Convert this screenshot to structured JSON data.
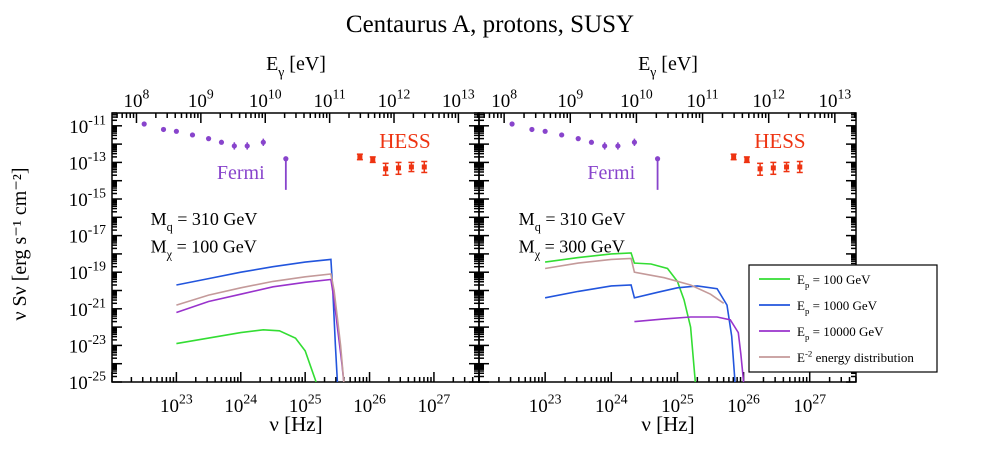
{
  "chart_data": {
    "title": "Centaurus A, protons, SUSY",
    "type": "line",
    "x_scale": "log",
    "y_scale": "log",
    "bottom_axis": {
      "label": "ν [Hz]",
      "lim_log10": [
        22.0,
        27.7
      ],
      "tick_exponents": [
        23,
        24,
        25,
        26,
        27
      ],
      "tick_base": "10"
    },
    "top_axis": {
      "label": "Eγ [eV]",
      "label_main": "E",
      "label_sub": "γ",
      "label_tail": " [eV]",
      "lim_log10": [
        7.62,
        13.32
      ],
      "tick_exponents": [
        8,
        9,
        10,
        11,
        12,
        13
      ],
      "tick_base": "10"
    },
    "y_axis": {
      "label": "ν Sν [erg s⁻¹ cm⁻²]",
      "lim_log10": [
        -25,
        -10.3
      ],
      "tick_exponents": [
        -11,
        -13,
        -15,
        -17,
        -19,
        -21,
        -23,
        -25
      ],
      "tick_base": "10"
    },
    "legend": {
      "placement": "lower-right of right panel",
      "entries": [
        {
          "label": "Ep = 100 GeV",
          "main": "E",
          "sub": "p",
          "tail": " = 100 GeV",
          "color": "#33dd33"
        },
        {
          "label": "Ep = 1000 GeV",
          "main": "E",
          "sub": "p",
          "tail": " = 1000 GeV",
          "color": "#2255dd"
        },
        {
          "label": "Ep = 10000 GeV",
          "main": "E",
          "sub": "p",
          "tail": " = 10000 GeV",
          "color": "#9933cc"
        },
        {
          "label": "E-2 energy distribution",
          "main": "E",
          "sup": "-2",
          "tail": " energy distribution",
          "color": "#c49a9a"
        }
      ]
    },
    "observations": {
      "fermi": {
        "label": "Fermi",
        "color": "#8844cc",
        "points": [
          [
            22.5,
            -10.9
          ],
          [
            22.8,
            -11.2
          ],
          [
            23.0,
            -11.3
          ],
          [
            23.25,
            -11.5
          ],
          [
            23.5,
            -11.7
          ],
          [
            23.7,
            -11.9
          ],
          [
            23.9,
            -12.1
          ],
          [
            24.1,
            -12.1
          ],
          [
            24.35,
            -11.9
          ],
          [
            24.7,
            -12.8
          ]
        ],
        "upper_limit_x": 24.7,
        "upper_limit_y_bottom": -14.5,
        "errors": [
          [
            23.9,
            -12.3,
            -11.9
          ],
          [
            24.1,
            -12.3,
            -11.9
          ],
          [
            24.35,
            -12.1,
            -11.7
          ]
        ]
      },
      "hess": {
        "label": "HESS",
        "color": "#ee3311",
        "points": [
          [
            25.85,
            -12.7
          ],
          [
            26.05,
            -12.85
          ],
          [
            26.25,
            -13.35
          ],
          [
            26.45,
            -13.3
          ],
          [
            26.65,
            -13.25
          ],
          [
            26.85,
            -13.25
          ]
        ],
        "errors": [
          [
            25.85,
            -12.85,
            -12.55
          ],
          [
            26.05,
            -13.0,
            -12.7
          ],
          [
            26.25,
            -13.7,
            -13.05
          ],
          [
            26.45,
            -13.65,
            -13.0
          ],
          [
            26.65,
            -13.5,
            -13.0
          ],
          [
            26.85,
            -13.55,
            -12.95
          ]
        ]
      }
    },
    "panels": [
      {
        "name": "left",
        "annotation_line1": {
          "main": "M",
          "sub": "q",
          "tail": " = 310 GeV"
        },
        "annotation_line2": {
          "main": "M",
          "sub": "χ",
          "tail": " = 100 GeV"
        },
        "series": [
          {
            "name": "Ep = 100 GeV",
            "color": "#33dd33",
            "points": [
              [
                23.0,
                -22.9
              ],
              [
                23.5,
                -22.6
              ],
              [
                24.0,
                -22.3
              ],
              [
                24.35,
                -22.15
              ],
              [
                24.6,
                -22.2
              ],
              [
                24.85,
                -22.6
              ],
              [
                25.0,
                -23.3
              ],
              [
                25.1,
                -24.3
              ],
              [
                25.17,
                -25
              ]
            ]
          },
          {
            "name": "Ep = 1000 GeV",
            "color": "#2255dd",
            "points": [
              [
                23.0,
                -19.7
              ],
              [
                23.5,
                -19.35
              ],
              [
                24.0,
                -19.0
              ],
              [
                24.5,
                -18.7
              ],
              [
                25.0,
                -18.45
              ],
              [
                25.4,
                -18.3
              ],
              [
                25.43,
                -20.0
              ],
              [
                25.47,
                -23.0
              ],
              [
                25.5,
                -25
              ]
            ]
          },
          {
            "name": "Ep = 10000 GeV",
            "color": "#9933cc",
            "points": [
              [
                23.0,
                -21.2
              ],
              [
                23.5,
                -20.6
              ],
              [
                24.0,
                -20.2
              ],
              [
                24.5,
                -19.8
              ],
              [
                25.0,
                -19.55
              ],
              [
                25.4,
                -19.4
              ],
              [
                25.45,
                -20.5
              ],
              [
                25.5,
                -22.0
              ],
              [
                25.57,
                -24.0
              ],
              [
                25.6,
                -25
              ]
            ]
          },
          {
            "name": "E-2 energy distribution",
            "color": "#c49a9a",
            "points": [
              [
                23.0,
                -20.8
              ],
              [
                23.5,
                -20.25
              ],
              [
                24.0,
                -19.85
              ],
              [
                24.5,
                -19.5
              ],
              [
                25.0,
                -19.25
              ],
              [
                25.4,
                -19.1
              ],
              [
                25.45,
                -20.0
              ],
              [
                25.5,
                -21.5
              ],
              [
                25.55,
                -23.0
              ],
              [
                25.6,
                -25
              ]
            ]
          }
        ]
      },
      {
        "name": "right",
        "annotation_line1": {
          "main": "M",
          "sub": "q",
          "tail": " = 310 GeV"
        },
        "annotation_line2": {
          "main": "M",
          "sub": "χ",
          "tail": " = 300 GeV"
        },
        "series": [
          {
            "name": "Ep = 100 GeV",
            "color": "#33dd33",
            "points": [
              [
                23.0,
                -18.45
              ],
              [
                23.5,
                -18.2
              ],
              [
                24.0,
                -18.0
              ],
              [
                24.3,
                -17.95
              ],
              [
                24.35,
                -18.5
              ],
              [
                24.6,
                -18.55
              ],
              [
                24.85,
                -18.8
              ],
              [
                25.0,
                -19.5
              ],
              [
                25.1,
                -20.5
              ],
              [
                25.2,
                -22.0
              ],
              [
                25.27,
                -25
              ]
            ]
          },
          {
            "name": "Ep = 1000 GeV",
            "color": "#2255dd",
            "points": [
              [
                23.0,
                -20.4
              ],
              [
                23.5,
                -20.05
              ],
              [
                24.0,
                -19.75
              ],
              [
                24.3,
                -19.7
              ],
              [
                24.35,
                -20.4
              ],
              [
                24.7,
                -20.1
              ],
              [
                25.0,
                -19.85
              ],
              [
                25.3,
                -19.75
              ],
              [
                25.6,
                -19.9
              ],
              [
                25.75,
                -20.8
              ],
              [
                25.82,
                -22.5
              ],
              [
                25.87,
                -25
              ]
            ]
          },
          {
            "name": "Ep = 10000 GeV",
            "color": "#9933cc",
            "points": [
              [
                24.35,
                -21.7
              ],
              [
                24.8,
                -21.55
              ],
              [
                25.2,
                -21.45
              ],
              [
                25.6,
                -21.45
              ],
              [
                25.8,
                -21.6
              ],
              [
                25.92,
                -22.3
              ],
              [
                25.96,
                -23.5
              ],
              [
                26.0,
                -25
              ]
            ]
          },
          {
            "name": "E-2 energy distribution",
            "color": "#c49a9a",
            "points": [
              [
                23.0,
                -18.8
              ],
              [
                23.5,
                -18.5
              ],
              [
                24.0,
                -18.3
              ],
              [
                24.3,
                -18.25
              ],
              [
                24.35,
                -19.0
              ],
              [
                24.8,
                -19.3
              ],
              [
                25.2,
                -19.7
              ],
              [
                25.5,
                -20.2
              ],
              [
                25.7,
                -20.7
              ]
            ]
          }
        ]
      }
    ]
  }
}
